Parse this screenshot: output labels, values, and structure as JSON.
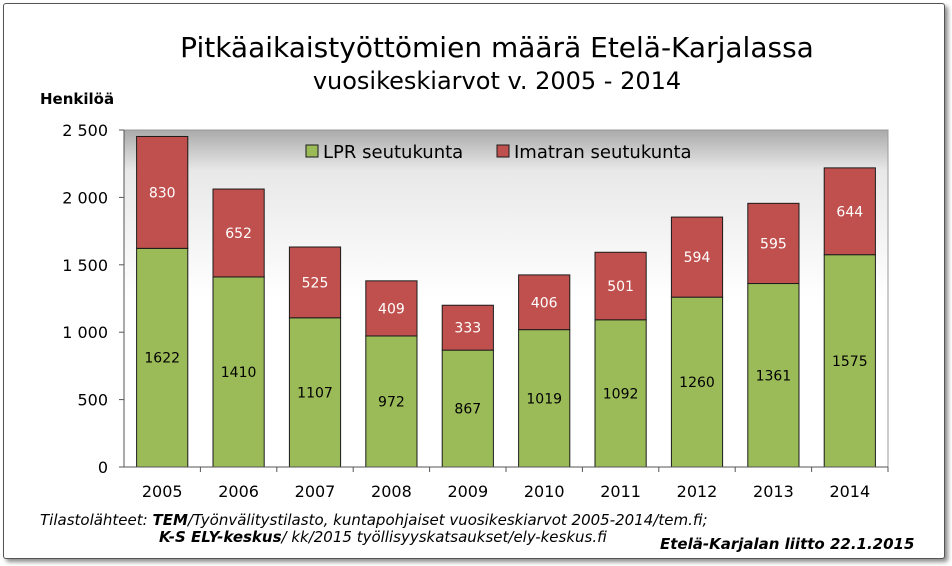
{
  "chart_data": {
    "type": "bar",
    "stacked": true,
    "title": "Pitkäaikaistyöttömien määrä Etelä-Karjalassa",
    "subtitle": "vuosikeskiarvot v. 2005 - 2014",
    "ylabel": "Henkilöä",
    "xlabel": "",
    "ylim": [
      0,
      2500
    ],
    "yticks": [
      0,
      500,
      1000,
      1500,
      2000,
      2500
    ],
    "ytick_labels": [
      "0",
      "500",
      "1 000",
      "1 500",
      "2 000",
      "2 500"
    ],
    "categories": [
      "2005",
      "2006",
      "2007",
      "2008",
      "2009",
      "2010",
      "2011",
      "2012",
      "2013",
      "2014"
    ],
    "series": [
      {
        "name": "LPR seutukunta",
        "color": "#9bbb59",
        "values": [
          1622,
          1410,
          1107,
          972,
          867,
          1019,
          1092,
          1260,
          1361,
          1575
        ]
      },
      {
        "name": "Imatran seutukunta",
        "color": "#c0504d",
        "values": [
          830,
          652,
          525,
          409,
          333,
          406,
          501,
          594,
          595,
          644
        ]
      }
    ],
    "legend_position": "top-right",
    "grid": false
  },
  "source": {
    "line1_prefix": "Tilastolähteet: ",
    "line1_bold": "TEM",
    "line1_rest": "/Työnvälitystilasto, kuntapohjaiset vuosikeskiarvot 2005-2014/tem.fi;",
    "line2_bold": "K-S ELY-keskus",
    "line2_rest": "/ kk/2015 työllisyyskatsaukset/ely-keskus.fi"
  },
  "credit": "Etelä-Karjalan liitto  22.1.2015"
}
